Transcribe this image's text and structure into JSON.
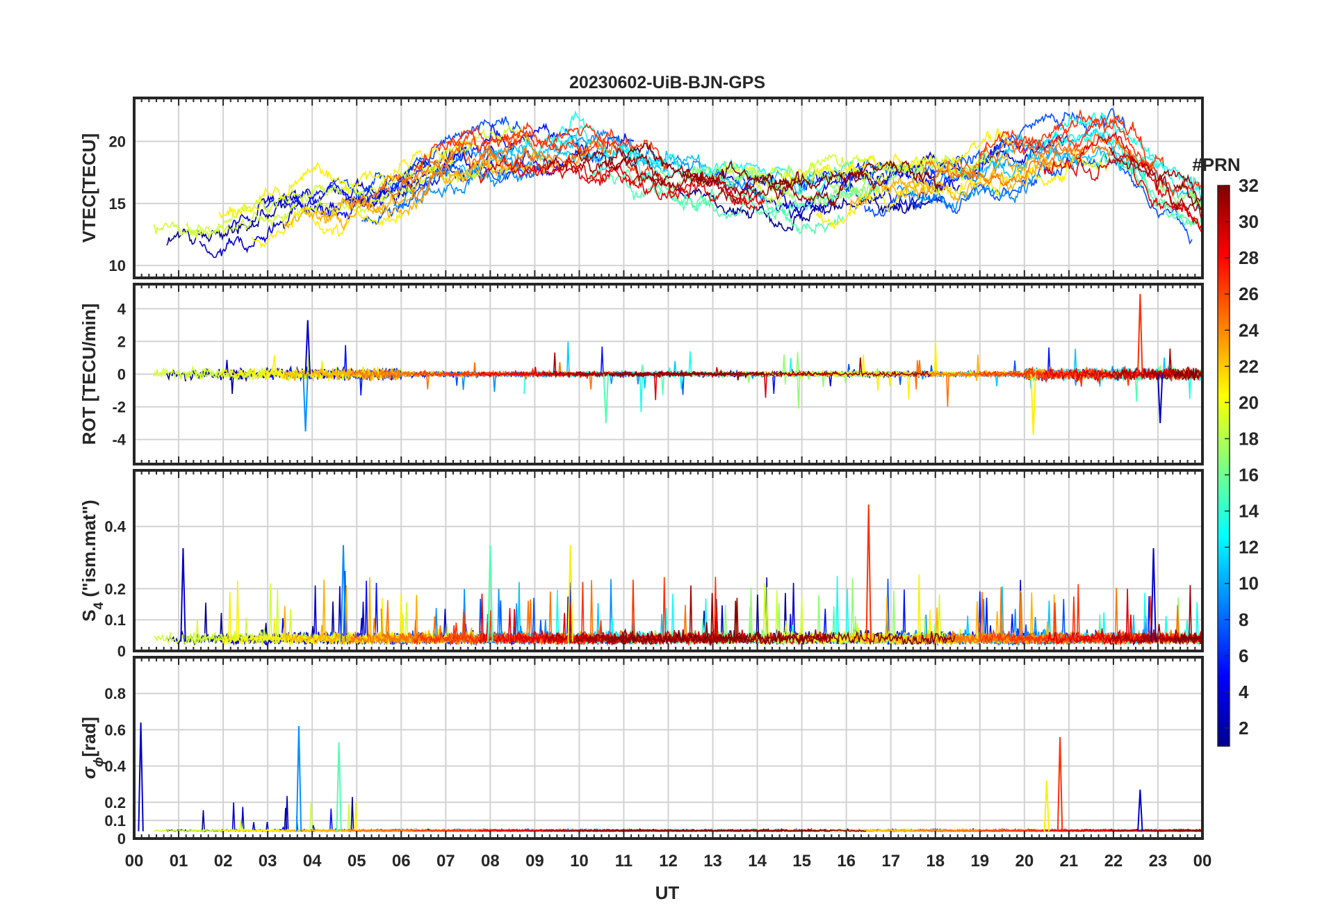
{
  "title": "20230602-UiB-BJN-GPS",
  "x_axis": {
    "label": "UT",
    "ticks": [
      "00",
      "01",
      "02",
      "03",
      "04",
      "05",
      "06",
      "07",
      "08",
      "09",
      "10",
      "11",
      "12",
      "13",
      "14",
      "15",
      "16",
      "17",
      "18",
      "19",
      "20",
      "21",
      "22",
      "23",
      "00"
    ],
    "range_hours": [
      0,
      24
    ]
  },
  "colorbar": {
    "label": "#PRN",
    "range": [
      1,
      32
    ],
    "ticks": [
      2,
      4,
      6,
      8,
      10,
      12,
      14,
      16,
      18,
      20,
      22,
      24,
      26,
      28,
      30,
      32
    ],
    "colors": {
      "prn_01": "#00008f",
      "prn_06": "#0050ff",
      "prn_11": "#00dfff",
      "prn_16": "#50ffaf",
      "prn_21": "#ffdf00",
      "prn_26": "#ff5000",
      "prn_32": "#800000"
    }
  },
  "panels": [
    {
      "id": "vtec",
      "ylabel": "VTEC[TECU]",
      "ticks": [
        "10",
        "15",
        "20"
      ]
    },
    {
      "id": "rot",
      "ylabel": "ROT [TECU/min]",
      "ticks": [
        "-4",
        "-2",
        "0",
        "2",
        "4"
      ]
    },
    {
      "id": "s4",
      "ylabel_main": "S",
      "ylabel_sub": "4",
      "ylabel_rest": " (\"ism.mat\")",
      "ticks": [
        "0",
        "0.1",
        "0.2",
        "0.4"
      ]
    },
    {
      "id": "sigma",
      "ylabel_main": "σ",
      "ylabel_sub": "ϕ",
      "ylabel_rest": "[rad]",
      "ticks": [
        "0",
        "0.1",
        "0.2",
        "0.4",
        "0.6",
        "0.8"
      ]
    }
  ],
  "chart_data": [
    {
      "type": "line",
      "title": "20230602-UiB-BJN-GPS",
      "ylabel": "VTEC[TECU]",
      "xlabel": "UT",
      "ylim": [
        9,
        23.5
      ],
      "xlim": [
        0,
        24
      ],
      "series_style": "one line per GPS PRN, colored by #PRN",
      "approx_envelope": {
        "x": [
          0,
          1,
          2,
          3,
          4,
          5,
          6,
          7,
          8,
          9,
          10,
          11,
          12,
          13,
          14,
          15,
          16,
          17,
          18,
          19,
          20,
          21,
          22,
          23,
          24
        ],
        "y": [
          13,
          12.5,
          13,
          14,
          15,
          15,
          16,
          18,
          19,
          19,
          19,
          18.5,
          17.5,
          17,
          16,
          15.5,
          16,
          17,
          17,
          17.5,
          18.5,
          19.5,
          20,
          17,
          15
        ]
      }
    },
    {
      "type": "line",
      "ylabel": "ROT [TECU/min]",
      "xlabel": "UT",
      "ylim": [
        -5.5,
        5.5
      ],
      "xlim": [
        0,
        24
      ],
      "series_style": "one line per GPS PRN, colored by #PRN",
      "noted_peaks": [
        {
          "x": 3.9,
          "y": 3.3
        },
        {
          "x": 3.85,
          "y": -3.5
        },
        {
          "x": 10.6,
          "y": -3.0
        },
        {
          "x": 20.2,
          "y": -3.7
        },
        {
          "x": 22.6,
          "y": 4.9
        },
        {
          "x": 23.05,
          "y": -3.0
        }
      ]
    },
    {
      "type": "line",
      "ylabel": "S4 (\"ism.mat\")",
      "xlabel": "UT",
      "ylim": [
        0,
        0.58
      ],
      "xlim": [
        0,
        24
      ],
      "series_style": "one line per GPS PRN, colored by #PRN",
      "noted_peaks": [
        {
          "x": 1.1,
          "y": 0.33
        },
        {
          "x": 4.7,
          "y": 0.34
        },
        {
          "x": 8.0,
          "y": 0.34
        },
        {
          "x": 9.8,
          "y": 0.34
        },
        {
          "x": 16.5,
          "y": 0.47
        },
        {
          "x": 22.9,
          "y": 0.33
        }
      ]
    },
    {
      "type": "line",
      "ylabel": "σϕ [rad]",
      "xlabel": "UT",
      "ylim": [
        0,
        1.0
      ],
      "xlim": [
        0,
        24
      ],
      "series_style": "one line per GPS PRN, colored by #PRN",
      "noted_peaks": [
        {
          "x": 0.15,
          "y": 0.64
        },
        {
          "x": 3.7,
          "y": 0.62
        },
        {
          "x": 4.6,
          "y": 0.53
        },
        {
          "x": 20.5,
          "y": 0.32
        },
        {
          "x": 20.8,
          "y": 0.56
        },
        {
          "x": 22.6,
          "y": 0.27
        }
      ]
    }
  ]
}
